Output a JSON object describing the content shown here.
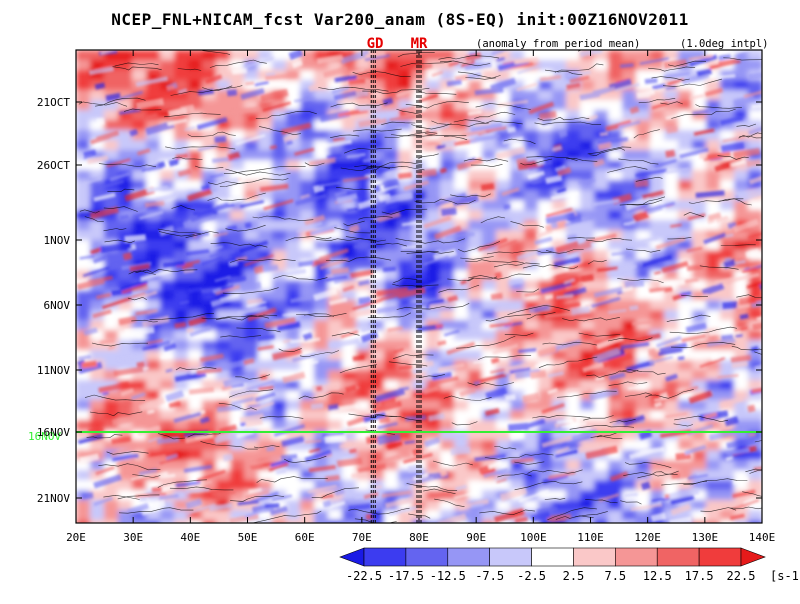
{
  "title": "NCEP_FNL+NICAM_fcst Var200_anam (8S-EQ) init:00Z16NOV2011",
  "header": {
    "markers": [
      "GD",
      "MR"
    ],
    "anomaly_note": "(anomaly from period mean)",
    "interp_note": "(1.0deg intpl)"
  },
  "today_label": "16NOV",
  "colorbar": {
    "ticks": [
      "-22.5",
      "-17.5",
      "-12.5",
      "-7.5",
      "-2.5",
      "2.5",
      "7.5",
      "12.5",
      "17.5",
      "22.5"
    ],
    "unit": "[s-1]",
    "colors": [
      "#1a1ae6",
      "#3c3cf0",
      "#6464f0",
      "#9696f5",
      "#c8c8fa",
      "#ffffff",
      "#fac8c8",
      "#f59696",
      "#f06464",
      "#f03c3c",
      "#e61a1a"
    ]
  },
  "chart_data": {
    "type": "heatmap",
    "x_range": [
      20,
      140
    ],
    "x_ticks": [
      "20E",
      "30E",
      "40E",
      "50E",
      "60E",
      "70E",
      "80E",
      "90E",
      "100E",
      "110E",
      "120E",
      "130E",
      "140E"
    ],
    "y_ticks": [
      "21OCT",
      "26OCT",
      "1NOV",
      "6NOV",
      "11NOV",
      "16NOV",
      "21NOV"
    ],
    "levels": [
      -22.5,
      -17.5,
      -12.5,
      -7.5,
      -2.5,
      2.5,
      7.5,
      12.5,
      17.5,
      22.5
    ],
    "reference_lines_lon": [
      72,
      80
    ],
    "today_line": "16NOV",
    "grid": false
  }
}
